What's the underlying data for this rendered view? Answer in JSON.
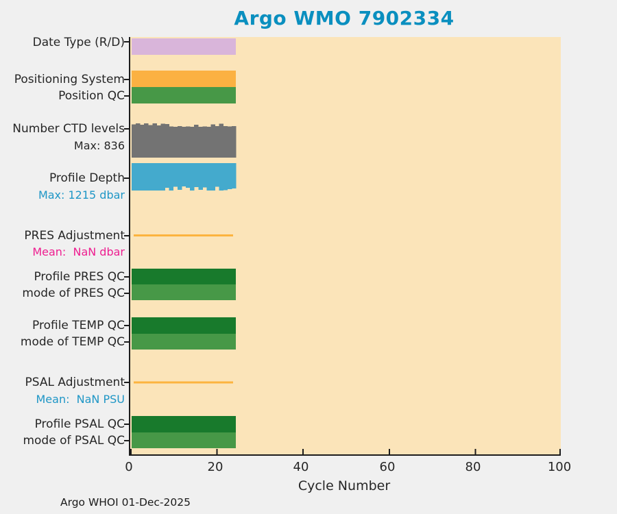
{
  "footer": {
    "text": "Argo WHOI 01-Dec-2025"
  },
  "colors": {
    "page_background": "#F0F0F0",
    "plot_background": "#FBE4B9",
    "title_blue": "#0A8FBF",
    "sublabel_blue": "#1E96C6",
    "sublabel_magenta": "#EE1E90",
    "axis": "#1C1C1C"
  },
  "chart_data": {
    "type": "bar",
    "subtype": "multi-row status/timeline bars per cycle",
    "title": "Argo WMO 7902334",
    "xlabel": "Cycle Number",
    "xlim": [
      0,
      100
    ],
    "xticks": [
      0,
      20,
      40,
      60,
      80,
      100
    ],
    "cycle_range": [
      1,
      25
    ],
    "n_cycles_plotted": 25,
    "grid": false,
    "legend": false,
    "rows": [
      {
        "id": "date_type",
        "label": "Date Type (R/D)",
        "kind": "band",
        "color": "#D9B5DA"
      },
      {
        "id": "positioning_system",
        "label": "Positioning System",
        "kind": "band",
        "color": "#FBB142"
      },
      {
        "id": "position_qc",
        "label": "Position QC",
        "kind": "band",
        "color": "#479847"
      },
      {
        "id": "number_ctd_levels",
        "label": "Number CTD levels",
        "sublabel": "Max: 836",
        "kind": "bars-up",
        "color": "#737373",
        "max": 836,
        "values": [
          815,
          836,
          800,
          834,
          795,
          832,
          790,
          830,
          820,
          760,
          755,
          765,
          750,
          758,
          752,
          800,
          755,
          760,
          750,
          810,
          765,
          828,
          770,
          758,
          770
        ]
      },
      {
        "id": "profile_depth",
        "label": "Profile Depth",
        "sublabel": "Max: 1215 dbar",
        "kind": "bars-down",
        "color": "#44AACD",
        "max": 1215,
        "values": [
          1215,
          1215,
          1208,
          1215,
          1212,
          1215,
          1210,
          1215,
          1100,
          1215,
          1050,
          1180,
          1040,
          1090,
          1215,
          1060,
          1190,
          1080,
          1215,
          1215,
          1045,
          1215,
          1200,
          1150,
          1120
        ]
      },
      {
        "id": "pres_adjustment",
        "label": "PRES Adjustment",
        "sublabel": "Mean:  NaN dbar",
        "kind": "line",
        "color": "#FCB43F",
        "mean_value": "NaN",
        "unit": "dbar"
      },
      {
        "id": "profile_pres_qc",
        "label": "Profile PRES QC",
        "kind": "band",
        "color": "#187A2C"
      },
      {
        "id": "mode_pres_qc",
        "label": "mode of PRES QC",
        "kind": "band",
        "color": "#479847"
      },
      {
        "id": "profile_temp_qc",
        "label": "Profile TEMP QC",
        "kind": "band",
        "color": "#187A2C"
      },
      {
        "id": "mode_temp_qc",
        "label": "mode of TEMP QC",
        "kind": "band",
        "color": "#479847"
      },
      {
        "id": "psal_adjustment",
        "label": "PSAL Adjustment",
        "sublabel": "Mean:  NaN PSU",
        "kind": "line",
        "color": "#FCB43F",
        "mean_value": "NaN",
        "unit": "PSU"
      },
      {
        "id": "profile_psal_qc",
        "label": "Profile PSAL QC",
        "kind": "band",
        "color": "#187A2C"
      },
      {
        "id": "mode_psal_qc",
        "label": "mode of PSAL QC",
        "kind": "band",
        "color": "#479847"
      }
    ]
  }
}
